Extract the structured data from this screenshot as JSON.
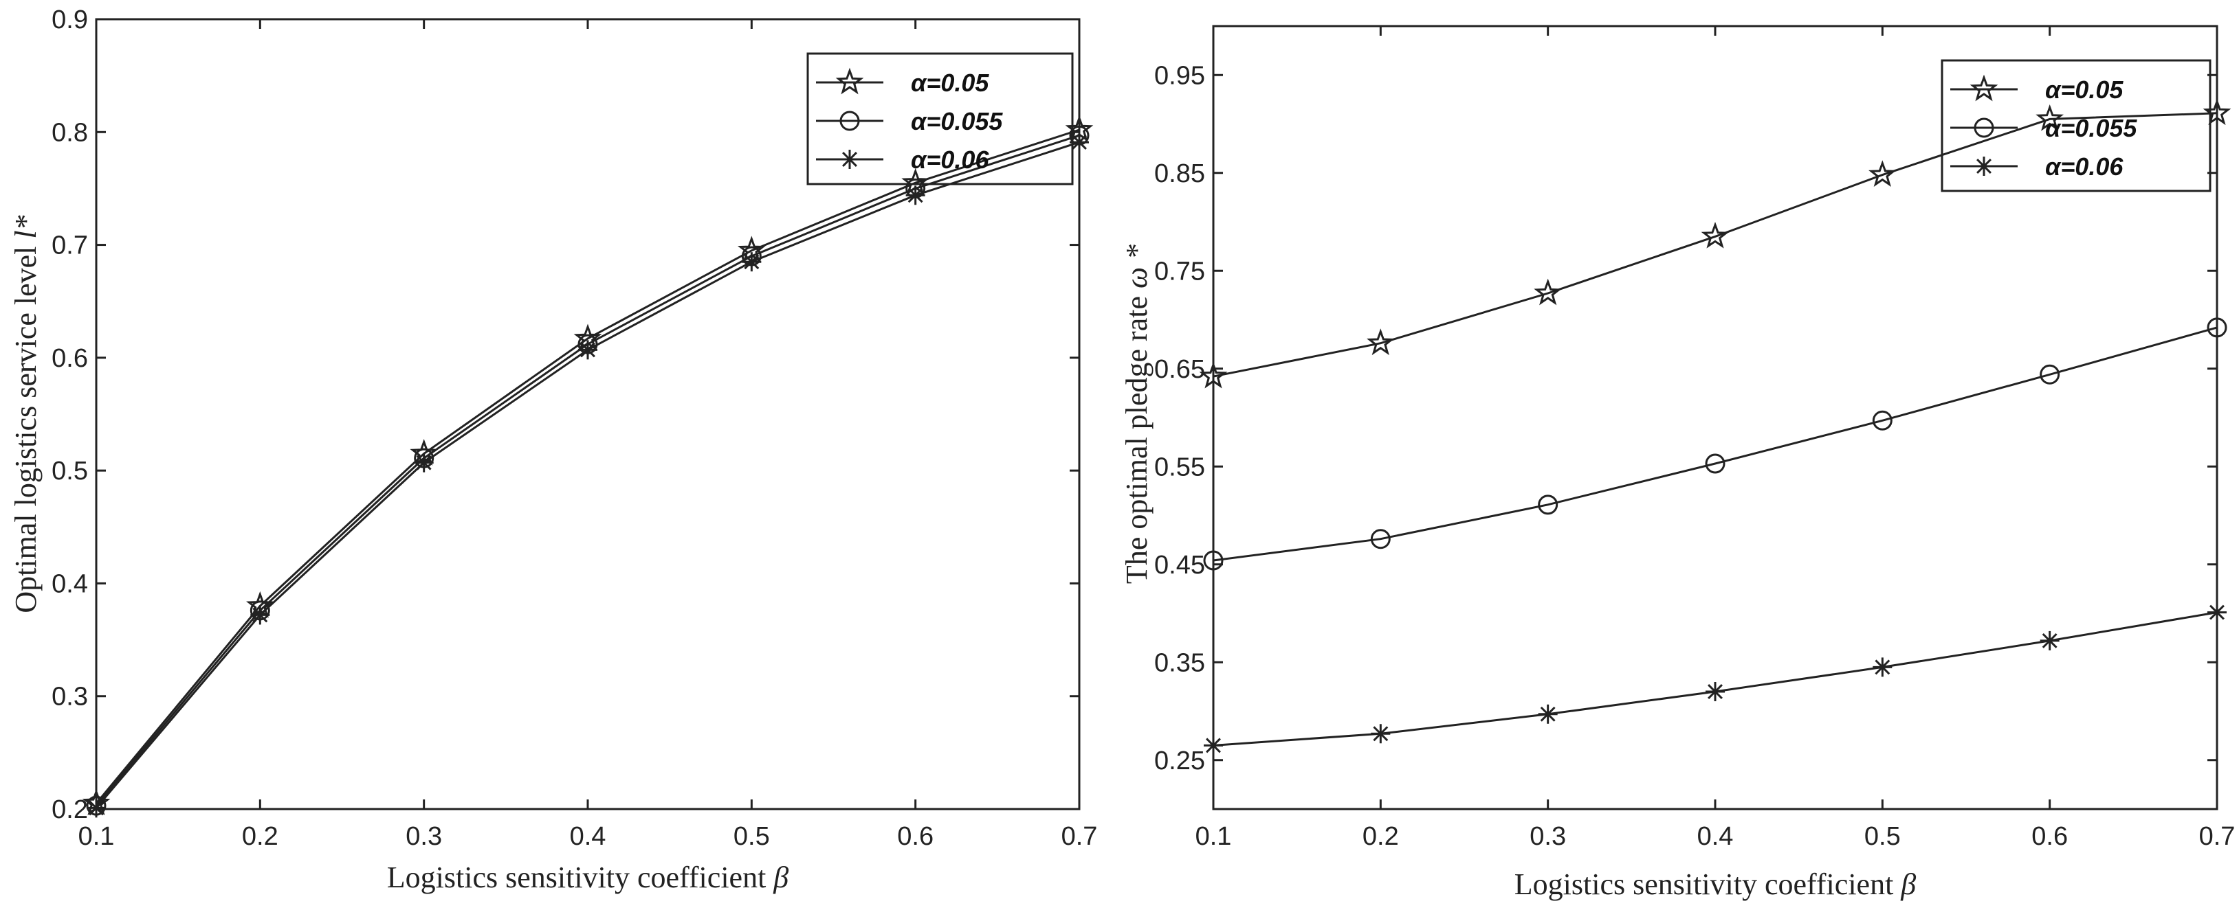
{
  "chart_data": [
    {
      "type": "line",
      "xlabel": "Logistics sensitivity coefficient",
      "xlabel_symbol": "β",
      "ylabel": "Optimal logistics service level",
      "ylabel_symbol": "l*",
      "xlim": [
        0.1,
        0.7
      ],
      "ylim": [
        0.2,
        0.9
      ],
      "xticks": [
        0.1,
        0.2,
        0.3,
        0.4,
        0.5,
        0.6,
        0.7
      ],
      "yticks": [
        0.2,
        0.3,
        0.4,
        0.5,
        0.6,
        0.7,
        0.8,
        0.9
      ],
      "xtick_labels": [
        "0.1",
        "0.2",
        "0.3",
        "0.4",
        "0.5",
        "0.6",
        "0.7"
      ],
      "ytick_labels": [
        "0.2",
        "0.3",
        "0.4",
        "0.5",
        "0.6",
        "0.7",
        "0.8",
        "0.9"
      ],
      "grid": false,
      "legend_position": "top-right",
      "x": [
        0.1,
        0.2,
        0.3,
        0.4,
        0.5,
        0.6,
        0.7
      ],
      "series": [
        {
          "name": "α=0.05",
          "marker": "star",
          "values": [
            0.205,
            0.38,
            0.515,
            0.617,
            0.695,
            0.755,
            0.802
          ]
        },
        {
          "name": "α=0.055",
          "marker": "circle",
          "values": [
            0.203,
            0.376,
            0.511,
            0.612,
            0.69,
            0.75,
            0.797
          ]
        },
        {
          "name": "α=0.06",
          "marker": "asterisk",
          "values": [
            0.201,
            0.372,
            0.507,
            0.607,
            0.685,
            0.744,
            0.791
          ]
        }
      ]
    },
    {
      "type": "line",
      "xlabel": "Logistics sensitivity coefficient",
      "xlabel_symbol": "β",
      "ylabel": "The optimal pledge rate",
      "ylabel_symbol": "ω *",
      "xlim": [
        0.1,
        0.7
      ],
      "ylim": [
        0.2,
        1.0
      ],
      "xticks": [
        0.1,
        0.2,
        0.3,
        0.4,
        0.5,
        0.6,
        0.7
      ],
      "yticks": [
        0.25,
        0.35,
        0.45,
        0.55,
        0.65,
        0.75,
        0.85,
        0.95
      ],
      "xtick_labels": [
        "0.1",
        "0.2",
        "0.3",
        "0.4",
        "0.5",
        "0.6",
        "0.7"
      ],
      "ytick_labels": [
        "0.25",
        "0.35",
        "0.45",
        "0.55",
        "0.65",
        "0.75",
        "0.85",
        "0.95"
      ],
      "grid": false,
      "legend_position": "top-right",
      "x": [
        0.1,
        0.2,
        0.3,
        0.4,
        0.5,
        0.6,
        0.7
      ],
      "series": [
        {
          "name": "α=0.05",
          "marker": "star",
          "values": [
            0.642,
            0.676,
            0.727,
            0.785,
            0.848,
            0.905,
            0.911
          ]
        },
        {
          "name": "α=0.055",
          "marker": "circle",
          "values": [
            0.454,
            0.476,
            0.511,
            0.553,
            0.597,
            0.644,
            0.692
          ]
        },
        {
          "name": "α=0.06",
          "marker": "asterisk",
          "values": [
            0.265,
            0.277,
            0.297,
            0.32,
            0.345,
            0.372,
            0.401
          ]
        }
      ]
    }
  ]
}
